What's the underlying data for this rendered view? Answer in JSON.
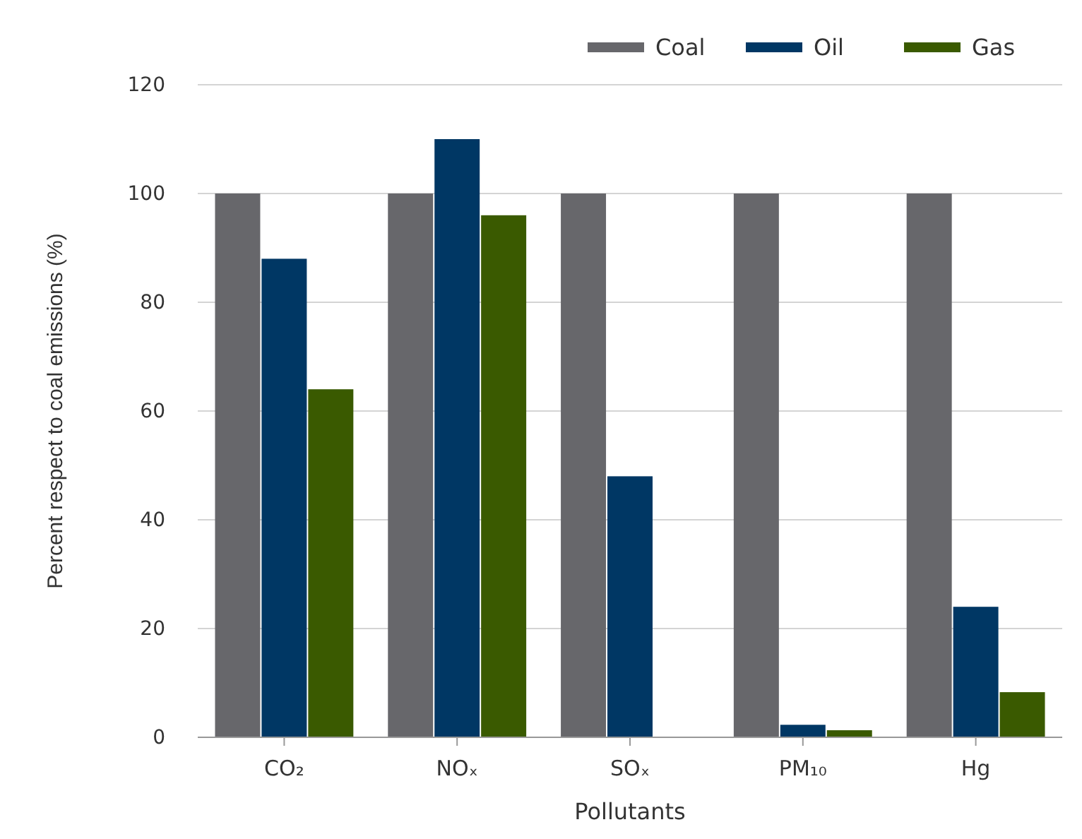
{
  "chart_data": {
    "type": "bar",
    "xlabel": "Pollutants",
    "ylabel": "Percent respect to coal emissions (%)",
    "categories": [
      "CO₂",
      "NOₓ",
      "SOₓ",
      "PM₁₀",
      "Hg"
    ],
    "series": [
      {
        "name": "Coal",
        "color": "#67676b",
        "values": [
          100,
          100,
          100,
          100,
          100
        ]
      },
      {
        "name": "Oil",
        "color": "#003764",
        "values": [
          88,
          110,
          48,
          2.3,
          24
        ]
      },
      {
        "name": "Gas",
        "color": "#3a5a00",
        "values": [
          64,
          96,
          0,
          1.3,
          8.3
        ]
      }
    ],
    "ylim": [
      0,
      120
    ],
    "yticks": [
      0,
      20,
      40,
      60,
      80,
      100,
      120
    ],
    "grid": "y",
    "legend": "top right"
  }
}
